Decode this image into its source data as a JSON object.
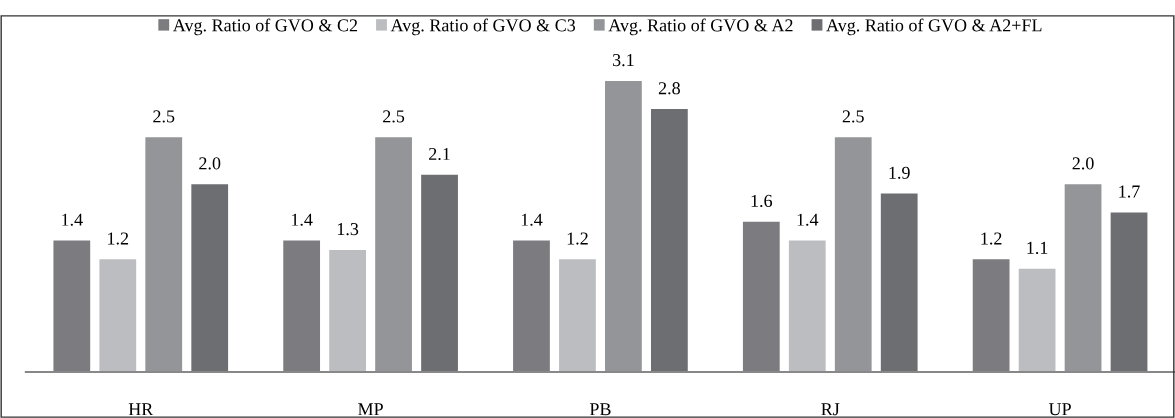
{
  "chart_data": {
    "type": "bar",
    "categories": [
      "HR",
      "MP",
      "PB",
      "RJ",
      "UP"
    ],
    "series": [
      {
        "name": "Avg. Ratio of GVO & C2",
        "color": "#7c7c80",
        "values": [
          1.4,
          1.4,
          1.4,
          1.6,
          1.2
        ],
        "value_labels": [
          "1.4",
          "1.4",
          "1.4",
          "1.6",
          "1.2"
        ]
      },
      {
        "name": "Avg. Ratio of GVO & C3",
        "color": "#bcbdc0",
        "values": [
          1.2,
          1.3,
          1.2,
          1.4,
          1.1
        ],
        "value_labels": [
          "1.2",
          "1.3",
          "1.2",
          "1.4",
          "1.1"
        ]
      },
      {
        "name": "Avg. Ratio of GVO & A2",
        "color": "#949598",
        "values": [
          2.5,
          2.5,
          3.1,
          2.5,
          2.0
        ],
        "value_labels": [
          "2.5",
          "2.5",
          "3.1",
          "2.5",
          "2.0"
        ]
      },
      {
        "name": "Avg. Ratio of GVO & A2+FL",
        "color": "#6d6e72",
        "values": [
          2.0,
          2.1,
          2.8,
          1.9,
          1.7
        ],
        "value_labels": [
          "2.0",
          "2.1",
          "2.8",
          "1.9",
          "1.7"
        ]
      }
    ],
    "legend": "top"
  }
}
